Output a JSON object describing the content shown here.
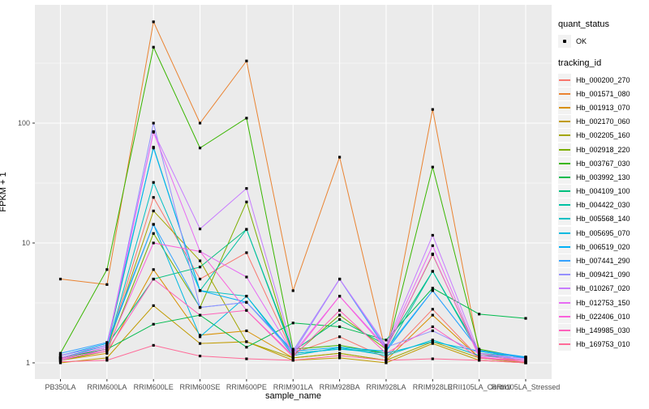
{
  "chart": {
    "xlabel": "sample_name",
    "ylabel": "FPKM + 1",
    "legend": {
      "quant_status_title": "quant_status",
      "ok_label": "OK",
      "tracking_title": "tracking_id"
    },
    "panel_bg": "#EBEBEB",
    "grid_color": "#FFFFFF",
    "tick_text_color": "#4D4D4D",
    "marker_color": "#000000"
  },
  "chart_data": {
    "type": "line",
    "title": "",
    "xlabel": "sample_name",
    "ylabel": "FPKM + 1",
    "y_scale": "log10",
    "y_ticks": [
      1,
      10,
      100
    ],
    "ylim": [
      0.97,
      970
    ],
    "grid": "major white at 1/10/100 and each sample, minor white at half-decades",
    "legend_position": "right",
    "point_marker": "small black square (quant_status OK)",
    "categories": [
      "PB350LA",
      "RRIM600LA",
      "RRIM600LE",
      "RRIM600SE",
      "RRIM600PE",
      "RRIM901LA",
      "RRIM928BA",
      "RRIM928LA",
      "RRIM928LE",
      "RRII105LA_Control",
      "RRII105LA_Stressed"
    ],
    "series": [
      {
        "name": "Hb_000200_270",
        "color": "#F8766D",
        "values": [
          1.1,
          1.3,
          24,
          5.0,
          8.3,
          1.2,
          1.65,
          1.1,
          2.8,
          1.1,
          1.05
        ]
      },
      {
        "name": "Hb_001571_080",
        "color": "#EA8331",
        "values": [
          5.0,
          4.5,
          700,
          100,
          330,
          4.0,
          52,
          1.2,
          130,
          1.2,
          1.0
        ]
      },
      {
        "name": "Hb_001913_070",
        "color": "#D89000",
        "values": [
          1.05,
          1.2,
          6.0,
          1.7,
          1.85,
          1.1,
          1.2,
          1.05,
          2.5,
          1.1,
          1.0
        ]
      },
      {
        "name": "Hb_002170_060",
        "color": "#C09B00",
        "values": [
          1.0,
          1.1,
          3.0,
          1.45,
          1.5,
          1.05,
          1.1,
          1.0,
          1.45,
          1.05,
          1.0
        ]
      },
      {
        "name": "Hb_002205_160",
        "color": "#A3A500",
        "values": [
          1.1,
          1.3,
          18.5,
          7.1,
          1.5,
          1.1,
          1.2,
          1.05,
          1.5,
          1.1,
          1.0
        ]
      },
      {
        "name": "Hb_002918_220",
        "color": "#7CAE00",
        "values": [
          1.05,
          1.25,
          12,
          2.9,
          22,
          1.15,
          2.5,
          1.3,
          8.0,
          1.15,
          1.05
        ]
      },
      {
        "name": "Hb_003767_030",
        "color": "#39B600",
        "values": [
          1.2,
          6.0,
          430,
          62,
          110,
          1.3,
          1.4,
          1.2,
          43,
          1.3,
          1.1
        ]
      },
      {
        "name": "Hb_003992_130",
        "color": "#00BB4E",
        "values": [
          1.1,
          1.3,
          2.1,
          2.5,
          1.35,
          2.15,
          2.0,
          1.55,
          4.2,
          2.55,
          2.35
        ]
      },
      {
        "name": "Hb_004109_100",
        "color": "#00BF7D",
        "values": [
          1.15,
          1.4,
          5.0,
          6.3,
          13,
          1.25,
          2.3,
          1.4,
          5.8,
          1.25,
          1.1
        ]
      },
      {
        "name": "Hb_004422_030",
        "color": "#00C1A3",
        "values": [
          1.1,
          1.35,
          63,
          4.0,
          13,
          1.2,
          1.3,
          1.25,
          5.8,
          1.2,
          1.12
        ]
      },
      {
        "name": "Hb_005568_140",
        "color": "#00BFC4",
        "values": [
          1.05,
          1.3,
          32,
          4.0,
          3.6,
          1.15,
          1.34,
          1.15,
          1.55,
          1.15,
          1.1
        ]
      },
      {
        "name": "Hb_005695_070",
        "color": "#00BAE0",
        "values": [
          1.1,
          1.4,
          14.3,
          1.65,
          3.6,
          1.2,
          1.3,
          1.2,
          1.5,
          1.25,
          1.1
        ]
      },
      {
        "name": "Hb_006519_020",
        "color": "#00B0F6",
        "values": [
          1.15,
          1.45,
          62,
          4.0,
          3.2,
          1.25,
          1.35,
          1.25,
          4.0,
          1.27,
          1.12
        ]
      },
      {
        "name": "Hb_007441_290",
        "color": "#35A2FF",
        "values": [
          1.2,
          1.48,
          14.3,
          2.9,
          3.2,
          1.26,
          5.0,
          1.3,
          4.0,
          1.27,
          1.1
        ]
      },
      {
        "name": "Hb_009421_090",
        "color": "#9590FF",
        "values": [
          1.1,
          1.35,
          100,
          2.9,
          3.2,
          1.2,
          5.0,
          1.35,
          1.85,
          1.2,
          1.05
        ]
      },
      {
        "name": "Hb_010267_020",
        "color": "#C77CFF",
        "values": [
          1.15,
          1.4,
          85,
          13.1,
          28.5,
          1.25,
          5.0,
          1.4,
          11.6,
          1.2,
          1.08
        ]
      },
      {
        "name": "Hb_012753_150",
        "color": "#E76BF3",
        "values": [
          1.1,
          1.35,
          84,
          8.5,
          5.2,
          1.2,
          3.6,
          1.35,
          9.5,
          1.15,
          1.05
        ]
      },
      {
        "name": "Hb_022406_010",
        "color": "#FA62DB",
        "values": [
          1.05,
          1.3,
          10,
          8.5,
          2.74,
          1.15,
          3.6,
          1.3,
          8.1,
          1.12,
          1.02
        ]
      },
      {
        "name": "Hb_149985_030",
        "color": "#FF62BC",
        "values": [
          1.08,
          1.25,
          5.0,
          2.5,
          2.74,
          1.12,
          2.74,
          1.2,
          2.0,
          1.1,
          1.02
        ]
      },
      {
        "name": "Hb_169753_010",
        "color": "#FF6A98",
        "values": [
          1.02,
          1.05,
          1.4,
          1.14,
          1.08,
          1.05,
          1.15,
          1.05,
          1.08,
          1.05,
          1.0
        ]
      }
    ]
  }
}
